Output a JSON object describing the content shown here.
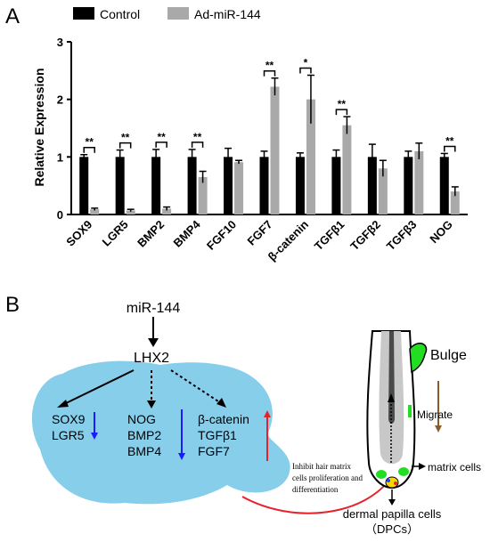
{
  "panel_a_label": "A",
  "panel_b_label": "B",
  "colors": {
    "control": "#000000",
    "treatment": "#a9a9a9",
    "blob": "#87ceeb",
    "down_arrow": "#1a1aff",
    "up_arrow": "#e8202a",
    "curve": "#e8202a",
    "bulge": "#22dd22",
    "migrate_arrow": "#8b5a2b"
  },
  "chart_data": {
    "type": "bar",
    "ylabel": "Relative Expression",
    "ylim": [
      0,
      3
    ],
    "yticks": [
      0,
      1,
      2,
      3
    ],
    "legend_position": "top",
    "categories": [
      "SOX9",
      "LGR5",
      "BMP2",
      "BMP4",
      "FGF10",
      "FGF7",
      "β-catenin",
      "TGFβ1",
      "TGFβ2",
      "TGFβ3",
      "NOG"
    ],
    "series": [
      {
        "name": "Control",
        "color": "#000000",
        "values": [
          1.0,
          1.0,
          1.0,
          1.0,
          1.0,
          1.0,
          1.0,
          1.0,
          1.0,
          1.0,
          1.0
        ],
        "errors": [
          0.04,
          0.12,
          0.13,
          0.13,
          0.15,
          0.1,
          0.07,
          0.12,
          0.22,
          0.1,
          0.06
        ]
      },
      {
        "name": "Ad-miR-144",
        "color": "#a9a9a9",
        "values": [
          0.09,
          0.07,
          0.1,
          0.65,
          0.91,
          2.22,
          2.0,
          1.55,
          0.8,
          1.1,
          0.4
        ],
        "errors": [
          0.02,
          0.02,
          0.03,
          0.1,
          0.03,
          0.15,
          0.42,
          0.15,
          0.14,
          0.14,
          0.08
        ]
      }
    ],
    "significance": [
      {
        "category": "SOX9",
        "label": "**"
      },
      {
        "category": "LGR5",
        "label": "**"
      },
      {
        "category": "BMP2",
        "label": "**"
      },
      {
        "category": "BMP4",
        "label": "**"
      },
      {
        "category": "FGF7",
        "label": "**"
      },
      {
        "category": "β-catenin",
        "label": "*"
      },
      {
        "category": "TGFβ1",
        "label": "**"
      },
      {
        "category": "NOG",
        "label": "**"
      }
    ]
  },
  "diagram": {
    "mir": "miR-144",
    "lhx2": "LHX2",
    "group1": [
      "SOX9",
      "LGR5"
    ],
    "group2": [
      "NOG",
      "BMP2",
      "BMP4"
    ],
    "group3": [
      "β-catenin",
      "TGFβ1",
      "FGF7"
    ],
    "note": [
      "Inhibit hair matrix",
      "cells proliferation and",
      "differentiation"
    ],
    "bulge": "Bulge",
    "migrate": "Migrate",
    "matrix_cells": "matrix cells",
    "dermal_papilla": "dermal papilla cells",
    "dpcs": "（DPCs）"
  }
}
